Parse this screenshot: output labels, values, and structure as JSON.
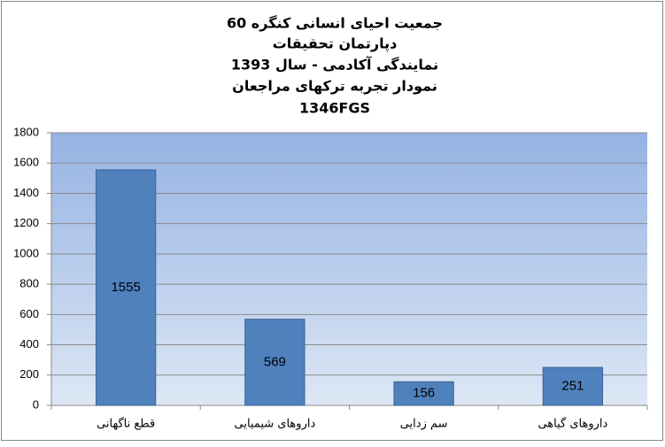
{
  "chart_data": {
    "type": "bar",
    "title": [
      "جمعیت احیای انسانی کنگره 60",
      "دپارتمان تحقیقات",
      "نمایندگی آکادمی - سال 1393",
      "نمودار تجربه ترکهای مراجعان",
      "1346FGS"
    ],
    "categories": [
      "قطع ناگهانی",
      "داروهای شیمیایی",
      "سم زدایی",
      "داروهای گیاهی"
    ],
    "values": [
      1555,
      569,
      156,
      251
    ],
    "color": "#4f81bd",
    "ylim": [
      0,
      1800
    ],
    "yticks": [
      0,
      200,
      400,
      600,
      800,
      1000,
      1200,
      1400,
      1600,
      1800
    ],
    "grid": true
  }
}
